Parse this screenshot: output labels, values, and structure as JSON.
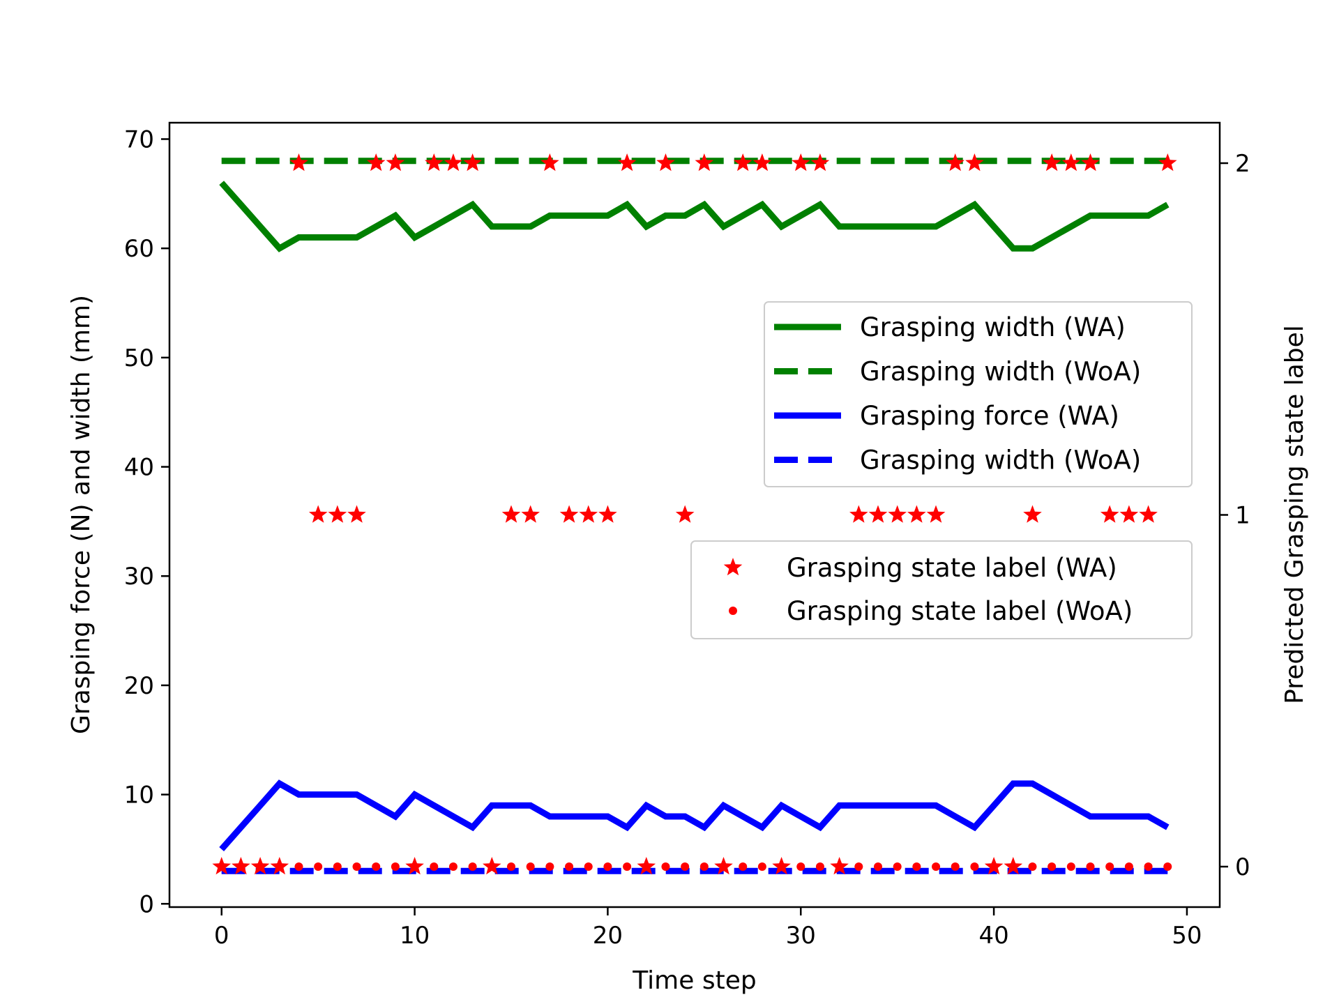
{
  "chart_data": {
    "type": "line",
    "title": "",
    "xlabel": "Time step",
    "ylabel": "Grasping force (N) and width (mm)",
    "y2label": "Predicted Grasping state label",
    "xlim": [
      -2.7,
      51.7
    ],
    "ylim": [
      -0.3,
      71.5
    ],
    "y2lim": [
      -0.115,
      2.115
    ],
    "xticks": [
      0,
      10,
      20,
      30,
      40,
      50
    ],
    "yticks": [
      0,
      10,
      20,
      30,
      40,
      50,
      60,
      70
    ],
    "y2ticks": [
      0,
      1,
      2
    ],
    "grid": false,
    "x": [
      0,
      1,
      2,
      3,
      4,
      5,
      6,
      7,
      8,
      9,
      10,
      11,
      12,
      13,
      14,
      15,
      16,
      17,
      18,
      19,
      20,
      21,
      22,
      23,
      24,
      25,
      26,
      27,
      28,
      29,
      30,
      31,
      32,
      33,
      34,
      35,
      36,
      37,
      38,
      39,
      40,
      41,
      42,
      43,
      44,
      45,
      46,
      47,
      48,
      49
    ],
    "series": [
      {
        "name": "Grasping width (WA)",
        "axis": "left",
        "style": "solid",
        "color": "#008000",
        "values": [
          66,
          64,
          62,
          60,
          61,
          61,
          61,
          61,
          62,
          63,
          61,
          62,
          63,
          64,
          62,
          62,
          62,
          63,
          63,
          63,
          63,
          64,
          62,
          63,
          63,
          64,
          62,
          63,
          64,
          62,
          63,
          64,
          62,
          62,
          62,
          62,
          62,
          62,
          63,
          64,
          62,
          60,
          60,
          61,
          62,
          63,
          63,
          63,
          63,
          64
        ]
      },
      {
        "name": "Grasping width (WoA)",
        "axis": "left",
        "style": "dashed",
        "color": "#008000",
        "values": [
          68,
          68,
          68,
          68,
          68,
          68,
          68,
          68,
          68,
          68,
          68,
          68,
          68,
          68,
          68,
          68,
          68,
          68,
          68,
          68,
          68,
          68,
          68,
          68,
          68,
          68,
          68,
          68,
          68,
          68,
          68,
          68,
          68,
          68,
          68,
          68,
          68,
          68,
          68,
          68,
          68,
          68,
          68,
          68,
          68,
          68,
          68,
          68,
          68,
          68
        ]
      },
      {
        "name": "Grasping force (WA)",
        "axis": "left",
        "style": "solid",
        "color": "#0000ff",
        "values": [
          5,
          7,
          9,
          11,
          10,
          10,
          10,
          10,
          9,
          8,
          10,
          9,
          8,
          7,
          9,
          9,
          9,
          8,
          8,
          8,
          8,
          7,
          9,
          8,
          8,
          7,
          9,
          8,
          7,
          9,
          8,
          7,
          9,
          9,
          9,
          9,
          9,
          9,
          8,
          7,
          9,
          11,
          11,
          10,
          9,
          8,
          8,
          8,
          8,
          7
        ]
      },
      {
        "name": "Grasping width (WoA)",
        "axis": "left",
        "style": "dashed",
        "color": "#0000ff",
        "values": [
          3,
          3,
          3,
          3,
          3,
          3,
          3,
          3,
          3,
          3,
          3,
          3,
          3,
          3,
          3,
          3,
          3,
          3,
          3,
          3,
          3,
          3,
          3,
          3,
          3,
          3,
          3,
          3,
          3,
          3,
          3,
          3,
          3,
          3,
          3,
          3,
          3,
          3,
          3,
          3,
          3,
          3,
          3,
          3,
          3,
          3,
          3,
          3,
          3,
          3
        ]
      },
      {
        "name": "Grasping state label (WA)",
        "axis": "right",
        "marker": "star",
        "color": "#ff0000",
        "values": [
          0,
          0,
          0,
          0,
          2,
          1,
          1,
          1,
          2,
          2,
          0,
          2,
          2,
          2,
          0,
          1,
          1,
          2,
          1,
          1,
          1,
          2,
          0,
          2,
          1,
          2,
          0,
          2,
          2,
          0,
          2,
          2,
          0,
          1,
          1,
          1,
          1,
          1,
          2,
          2,
          0,
          0,
          1,
          2,
          2,
          2,
          1,
          1,
          1,
          2
        ]
      },
      {
        "name": "Grasping state label (WoA)",
        "axis": "right",
        "marker": "dot",
        "color": "#ff0000",
        "values": [
          0,
          0,
          0,
          0,
          0,
          0,
          0,
          0,
          0,
          0,
          0,
          0,
          0,
          0,
          0,
          0,
          0,
          0,
          0,
          0,
          0,
          0,
          0,
          0,
          0,
          0,
          0,
          0,
          0,
          0,
          0,
          0,
          0,
          0,
          0,
          0,
          0,
          0,
          0,
          0,
          0,
          0,
          0,
          0,
          0,
          0,
          0,
          0,
          0,
          0
        ]
      }
    ],
    "legends": [
      {
        "placement": "center-right",
        "entries": [
          0,
          1,
          2,
          3
        ]
      },
      {
        "placement": "right",
        "entries": [
          4,
          5
        ]
      }
    ]
  }
}
